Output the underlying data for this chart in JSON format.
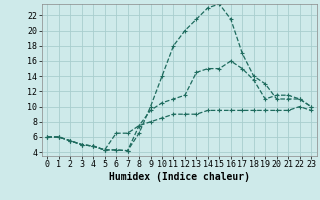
{
  "xlabel": "Humidex (Indice chaleur)",
  "background_color": "#ceeaea",
  "grid_color": "#a8cece",
  "line_color": "#1e6b5e",
  "x_range": [
    -0.5,
    23.5
  ],
  "y_range": [
    3.5,
    23.5
  ],
  "yticks": [
    4,
    6,
    8,
    10,
    12,
    14,
    16,
    18,
    20,
    22
  ],
  "xticks": [
    0,
    1,
    2,
    3,
    4,
    5,
    6,
    7,
    8,
    9,
    10,
    11,
    12,
    13,
    14,
    15,
    16,
    17,
    18,
    19,
    20,
    21,
    22,
    23
  ],
  "line1_x": [
    0,
    1,
    2,
    3,
    4,
    5,
    6,
    7,
    8,
    9,
    10,
    11,
    12,
    13,
    14,
    15,
    16,
    17,
    18,
    19,
    20,
    21,
    22,
    23
  ],
  "line1_y": [
    6,
    6,
    5.5,
    5,
    4.8,
    4.3,
    4.3,
    4.2,
    6.5,
    10,
    14,
    18,
    20,
    21.5,
    23,
    23.5,
    21.5,
    17,
    14,
    13,
    11,
    11,
    11,
    10
  ],
  "line2_x": [
    0,
    1,
    2,
    3,
    4,
    5,
    6,
    7,
    8,
    9,
    10,
    11,
    12,
    13,
    14,
    15,
    16,
    17,
    18,
    19,
    20,
    21,
    22,
    23
  ],
  "line2_y": [
    6,
    6,
    5.5,
    5.0,
    4.8,
    4.3,
    4.3,
    4.2,
    7.5,
    9.5,
    10.5,
    11,
    11.5,
    14.5,
    15,
    15,
    16,
    15,
    13.5,
    11,
    11.5,
    11.5,
    11,
    10
  ],
  "line3_x": [
    0,
    1,
    2,
    3,
    4,
    5,
    6,
    7,
    8,
    9,
    10,
    11,
    12,
    13,
    14,
    15,
    16,
    17,
    18,
    19,
    20,
    21,
    22,
    23
  ],
  "line3_y": [
    6,
    6,
    5.5,
    5.0,
    4.8,
    4.3,
    6.5,
    6.5,
    7.5,
    8,
    8.5,
    9,
    9,
    9,
    9.5,
    9.5,
    9.5,
    9.5,
    9.5,
    9.5,
    9.5,
    9.5,
    10,
    9.5
  ],
  "marker_size": 3,
  "line_width": 0.9,
  "xlabel_fontsize": 7,
  "tick_fontsize": 6
}
